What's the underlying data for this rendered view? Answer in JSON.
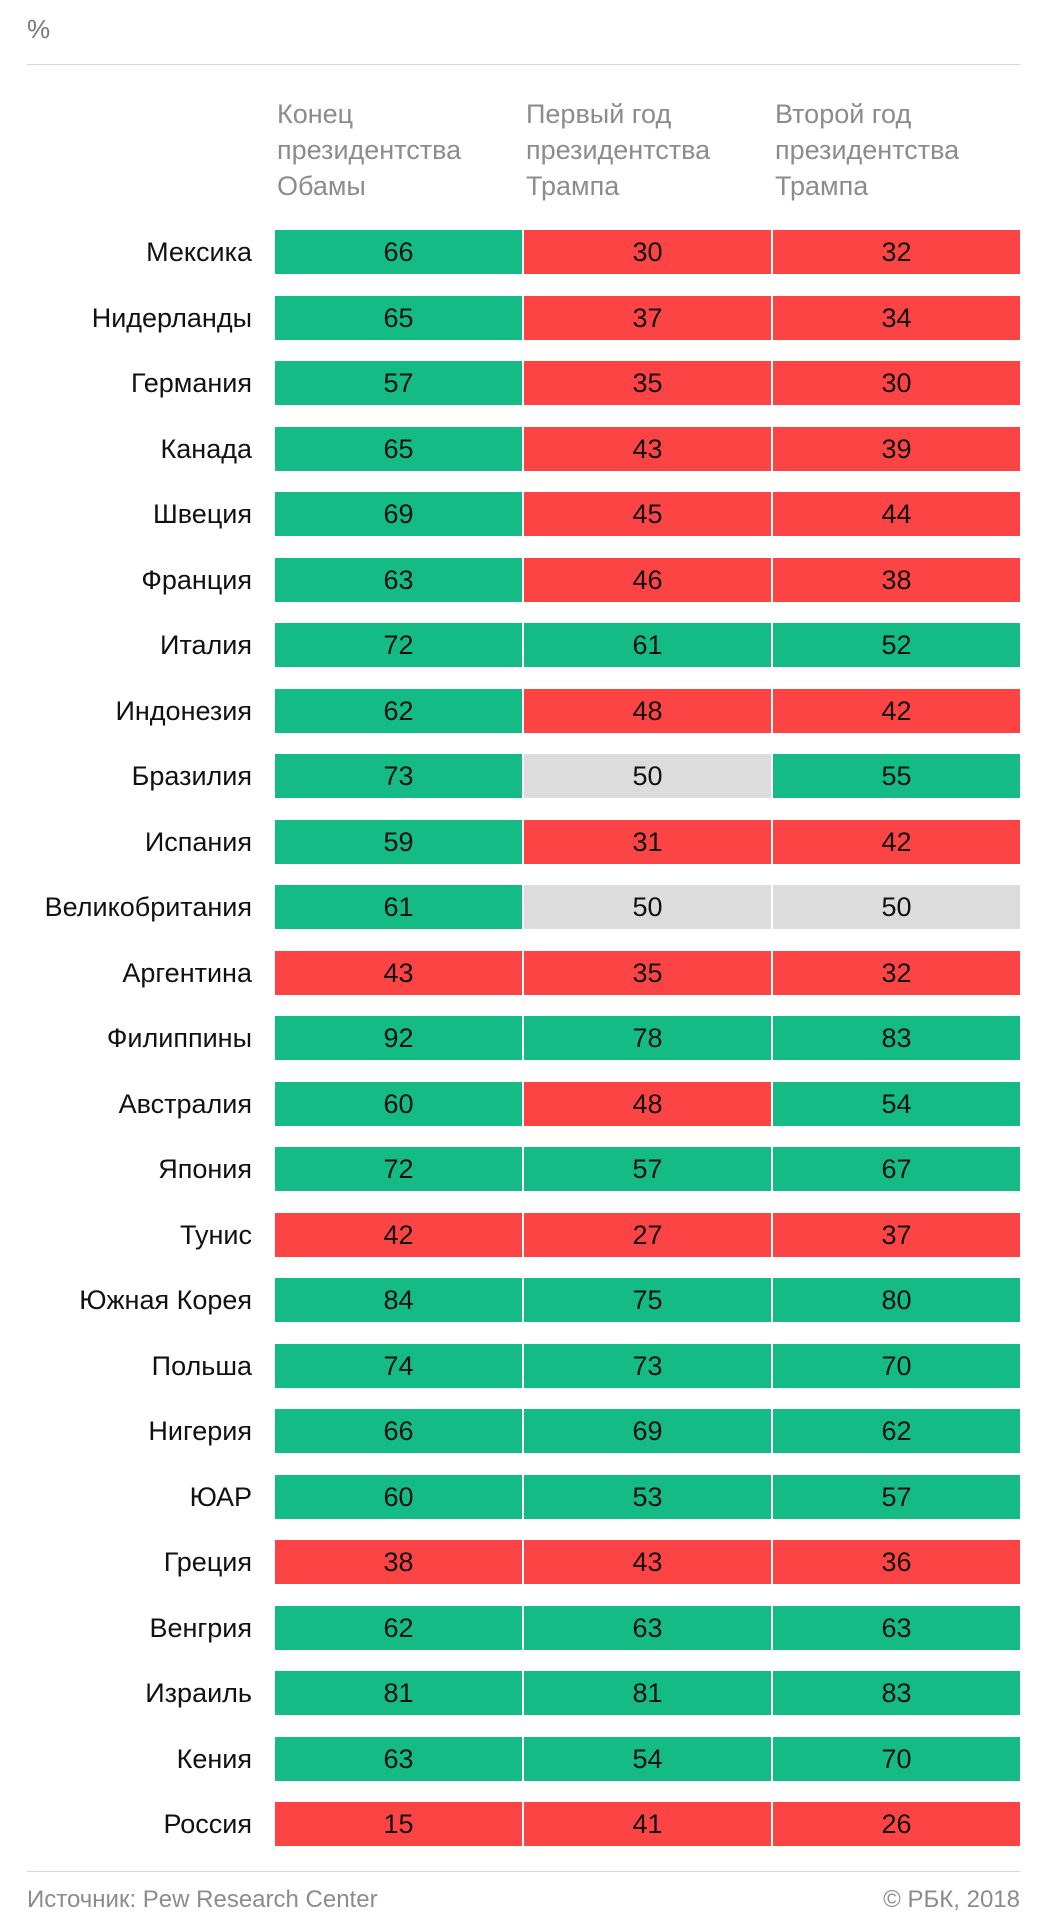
{
  "unit": "%",
  "columns": [
    "Конец\nпрезидентства\nОбамы",
    "Первый год\nпрезидентства\nТрампа",
    "Второй год\nпрезидентства\nТрампа"
  ],
  "colors": {
    "positive": "#14bb85",
    "negative": "#fc4444",
    "neutral": "#dcdcdc"
  },
  "footer": {
    "source": "Источник: Pew Research Center",
    "copyright": "© РБК, 2018"
  },
  "chart_data": {
    "type": "table",
    "columns": [
      "Конец президентства Обамы",
      "Первый год президентства Трампа",
      "Второй год президентства Трампа"
    ],
    "rows": [
      {
        "country": "Мексика",
        "values": [
          66,
          30,
          32
        ],
        "status": [
          "positive",
          "negative",
          "negative"
        ]
      },
      {
        "country": "Нидерланды",
        "values": [
          65,
          37,
          34
        ],
        "status": [
          "positive",
          "negative",
          "negative"
        ]
      },
      {
        "country": "Германия",
        "values": [
          57,
          35,
          30
        ],
        "status": [
          "positive",
          "negative",
          "negative"
        ]
      },
      {
        "country": "Канада",
        "values": [
          65,
          43,
          39
        ],
        "status": [
          "positive",
          "negative",
          "negative"
        ]
      },
      {
        "country": "Швеция",
        "values": [
          69,
          45,
          44
        ],
        "status": [
          "positive",
          "negative",
          "negative"
        ]
      },
      {
        "country": "Франция",
        "values": [
          63,
          46,
          38
        ],
        "status": [
          "positive",
          "negative",
          "negative"
        ]
      },
      {
        "country": "Италия",
        "values": [
          72,
          61,
          52
        ],
        "status": [
          "positive",
          "positive",
          "positive"
        ]
      },
      {
        "country": "Индонезия",
        "values": [
          62,
          48,
          42
        ],
        "status": [
          "positive",
          "negative",
          "negative"
        ]
      },
      {
        "country": "Бразилия",
        "values": [
          73,
          50,
          55
        ],
        "status": [
          "positive",
          "neutral",
          "positive"
        ]
      },
      {
        "country": "Испания",
        "values": [
          59,
          31,
          42
        ],
        "status": [
          "positive",
          "negative",
          "negative"
        ]
      },
      {
        "country": "Великобритания",
        "values": [
          61,
          50,
          50
        ],
        "status": [
          "positive",
          "neutral",
          "neutral"
        ]
      },
      {
        "country": "Аргентина",
        "values": [
          43,
          35,
          32
        ],
        "status": [
          "negative",
          "negative",
          "negative"
        ]
      },
      {
        "country": "Филиппины",
        "values": [
          92,
          78,
          83
        ],
        "status": [
          "positive",
          "positive",
          "positive"
        ]
      },
      {
        "country": "Австралия",
        "values": [
          60,
          48,
          54
        ],
        "status": [
          "positive",
          "negative",
          "positive"
        ]
      },
      {
        "country": "Япония",
        "values": [
          72,
          57,
          67
        ],
        "status": [
          "positive",
          "positive",
          "positive"
        ]
      },
      {
        "country": "Тунис",
        "values": [
          42,
          27,
          37
        ],
        "status": [
          "negative",
          "negative",
          "negative"
        ]
      },
      {
        "country": "Южная Корея",
        "values": [
          84,
          75,
          80
        ],
        "status": [
          "positive",
          "positive",
          "positive"
        ]
      },
      {
        "country": "Польша",
        "values": [
          74,
          73,
          70
        ],
        "status": [
          "positive",
          "positive",
          "positive"
        ]
      },
      {
        "country": "Нигерия",
        "values": [
          66,
          69,
          62
        ],
        "status": [
          "positive",
          "positive",
          "positive"
        ]
      },
      {
        "country": "ЮАР",
        "values": [
          60,
          53,
          57
        ],
        "status": [
          "positive",
          "positive",
          "positive"
        ]
      },
      {
        "country": "Греция",
        "values": [
          38,
          43,
          36
        ],
        "status": [
          "negative",
          "negative",
          "negative"
        ]
      },
      {
        "country": "Венгрия",
        "values": [
          62,
          63,
          63
        ],
        "status": [
          "positive",
          "positive",
          "positive"
        ]
      },
      {
        "country": "Израиль",
        "values": [
          81,
          81,
          83
        ],
        "status": [
          "positive",
          "positive",
          "positive"
        ]
      },
      {
        "country": "Кения",
        "values": [
          63,
          54,
          70
        ],
        "status": [
          "positive",
          "positive",
          "positive"
        ]
      },
      {
        "country": "Россия",
        "values": [
          15,
          41,
          26
        ],
        "status": [
          "negative",
          "negative",
          "negative"
        ]
      }
    ]
  }
}
